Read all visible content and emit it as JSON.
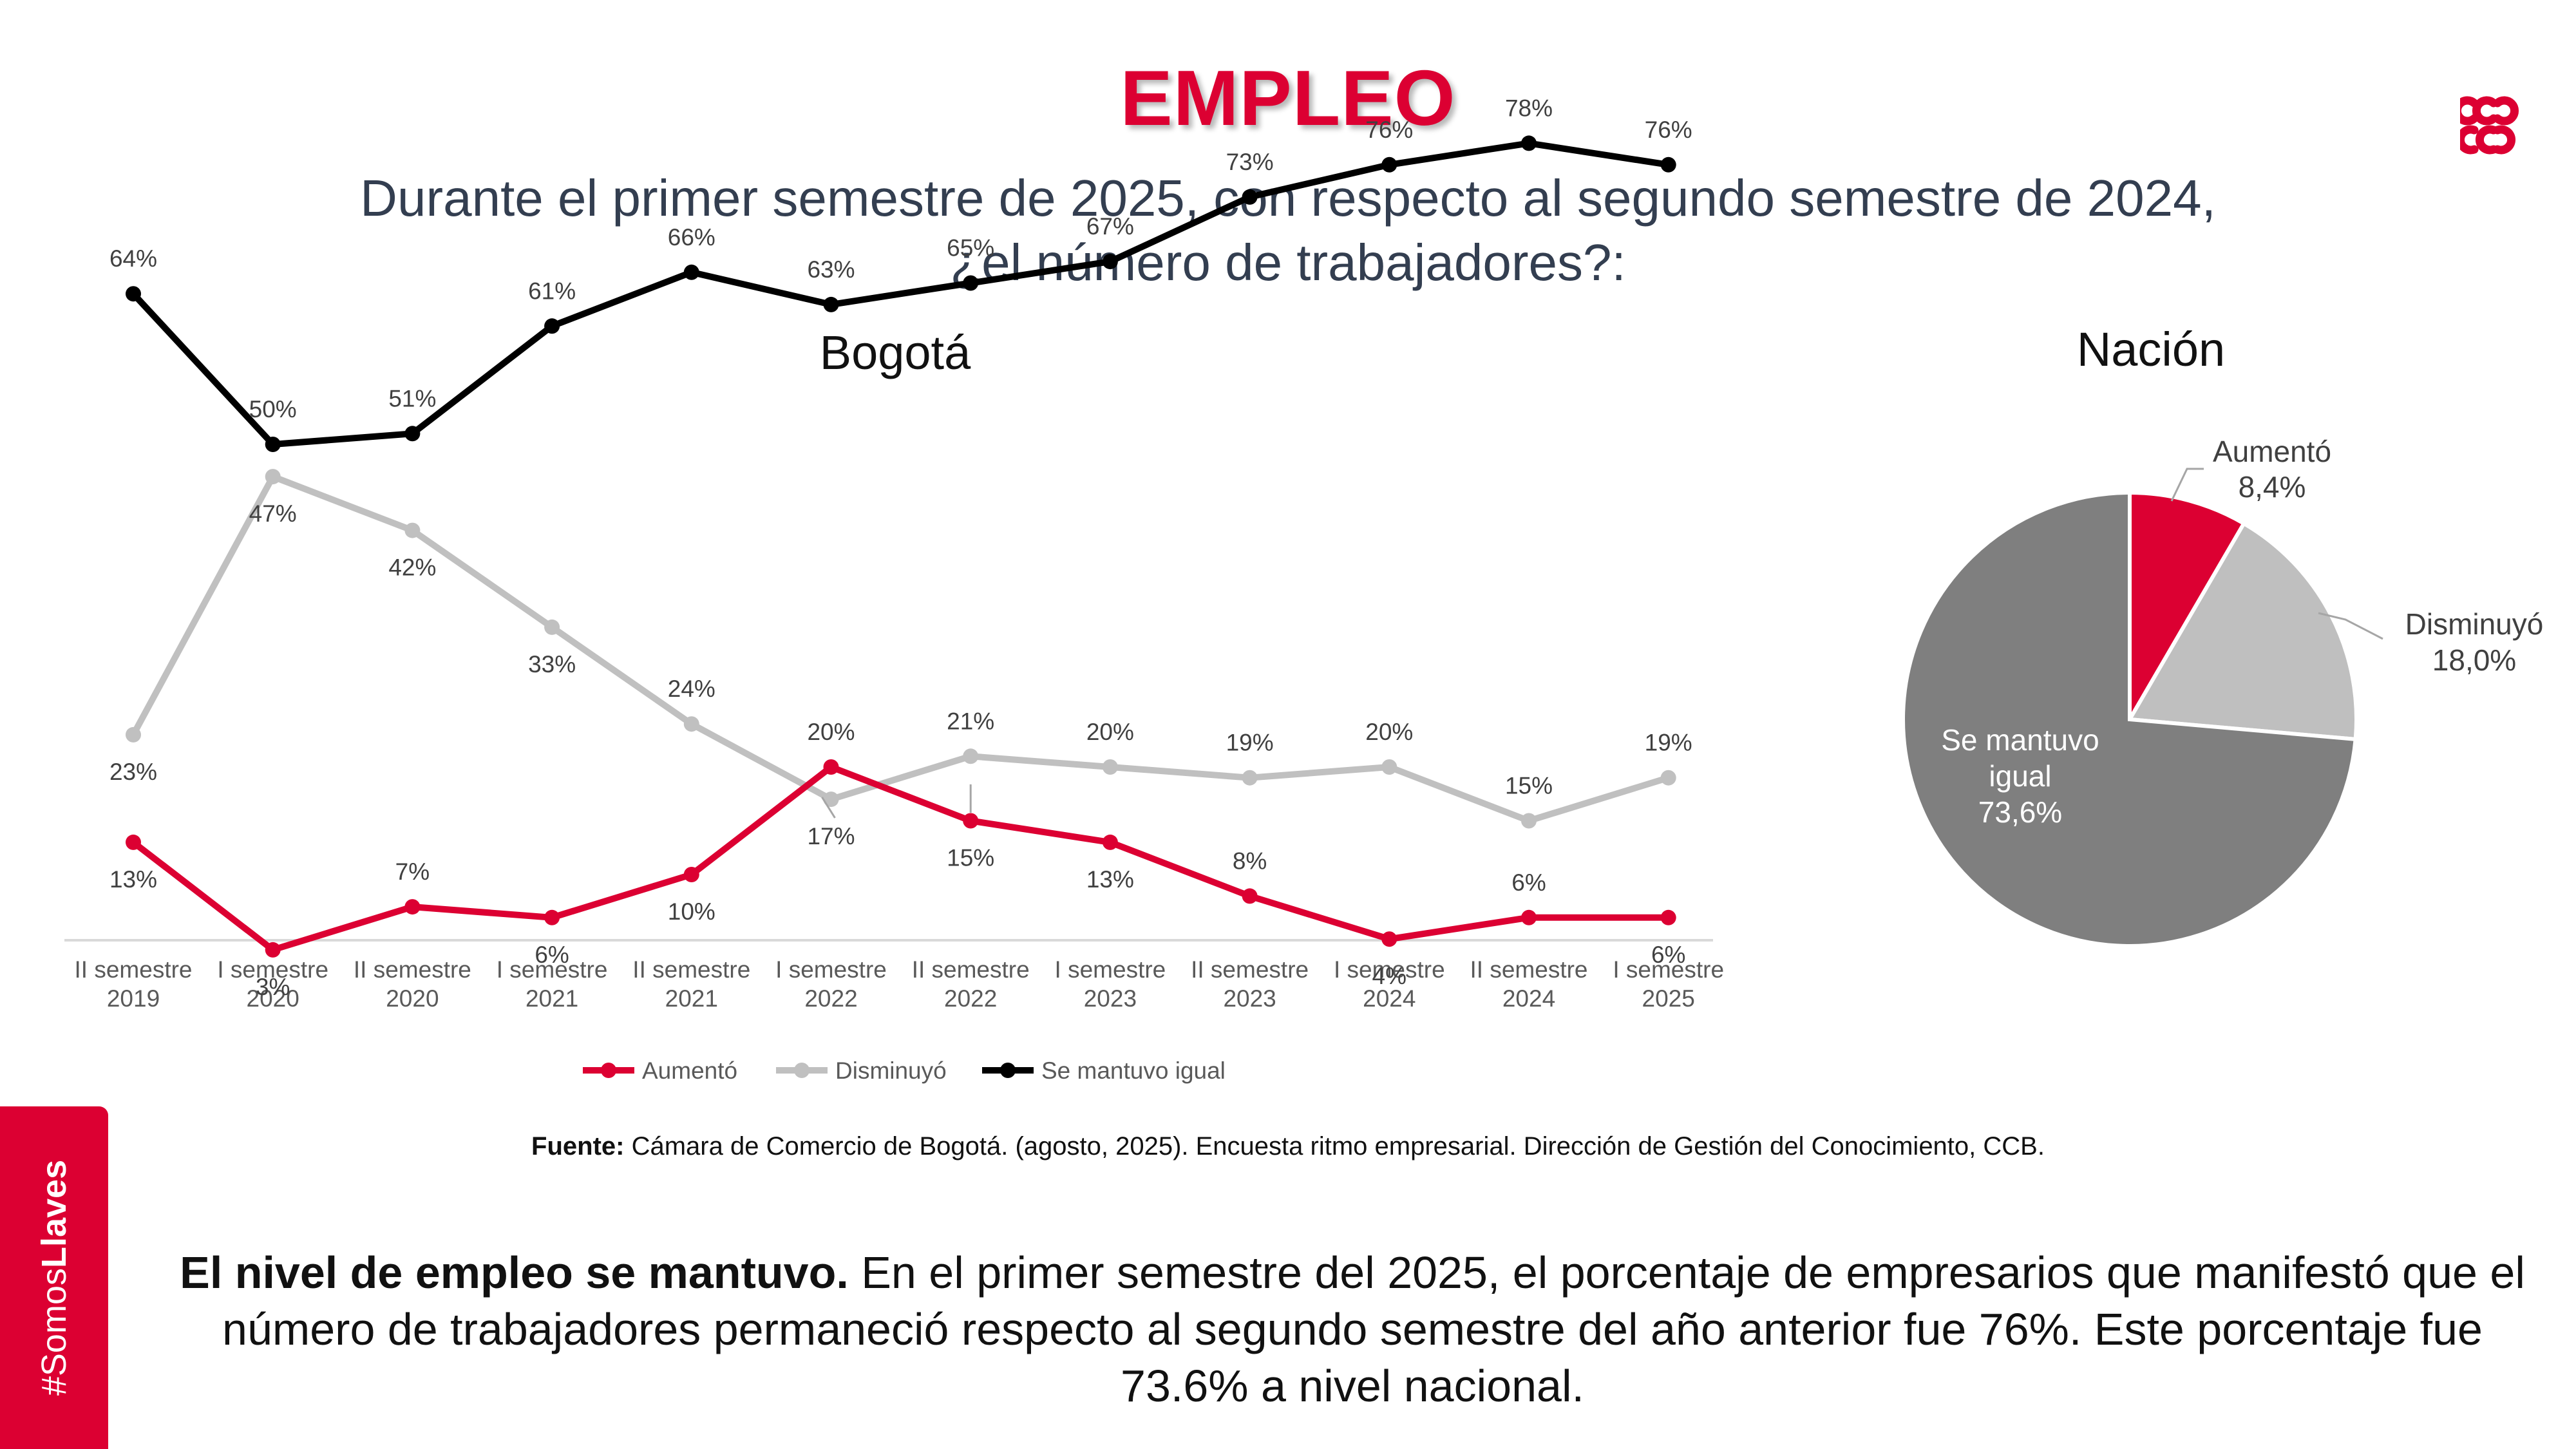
{
  "header": {
    "title": "EMPLEO",
    "subtitle_line1": "Durante el primer semestre de 2025, con respecto al segundo semestre de 2024,",
    "subtitle_line2": "¿el número de trabajadores?:"
  },
  "logo": {
    "icon": "ccb-logo-icon",
    "color": "#dc0032"
  },
  "colors": {
    "aumento": "#dc0032",
    "disminuyo": "#c0c0c0",
    "igual": "#000000",
    "pie_igual": "#7f7f7f"
  },
  "chart_data": [
    {
      "type": "line",
      "title": "Bogotá",
      "categories": [
        [
          "II semestre",
          "2019"
        ],
        [
          "I semestre",
          "2020"
        ],
        [
          "II semestre",
          "2020"
        ],
        [
          "I semestre",
          "2021"
        ],
        [
          "II semestre",
          "2021"
        ],
        [
          "I semestre",
          "2022"
        ],
        [
          "II semestre",
          "2022"
        ],
        [
          "I semestre",
          "2023"
        ],
        [
          "II semestre",
          "2023"
        ],
        [
          "I semestre",
          "2024"
        ],
        [
          "II semestre",
          "2024"
        ],
        [
          "I semestre",
          "2025"
        ]
      ],
      "series": [
        {
          "name": "Aumentó",
          "color": "#dc0032",
          "values": [
            13,
            3,
            7,
            6,
            10,
            20,
            15,
            13,
            8,
            4,
            6,
            6
          ],
          "labels": [
            "13%",
            "3%",
            "7%",
            "6%",
            "10%",
            "20%",
            "15%",
            "13%",
            "8%",
            "4%",
            "6%",
            "6%"
          ]
        },
        {
          "name": "Disminuyó",
          "color": "#c0c0c0",
          "values": [
            23,
            47,
            42,
            33,
            24,
            17,
            21,
            20,
            19,
            20,
            15,
            19
          ],
          "labels": [
            "23%",
            "47%",
            "42%",
            "33%",
            "24%",
            "17%",
            "21%",
            "20%",
            "19%",
            "20%",
            "15%",
            "19%"
          ]
        },
        {
          "name": "Se mantuvo igual",
          "color": "#000000",
          "values": [
            64,
            50,
            51,
            61,
            66,
            63,
            65,
            67,
            73,
            76,
            78,
            76
          ],
          "labels": [
            "64%",
            "50%",
            "51%",
            "61%",
            "66%",
            "63%",
            "65%",
            "67%",
            "73%",
            "76%",
            "78%",
            "76%"
          ]
        }
      ],
      "ylim": [
        0,
        100
      ],
      "grid": false,
      "legend": "bottom"
    },
    {
      "type": "pie",
      "title": "Nación",
      "slices": [
        {
          "label": "Aumentó",
          "value": 8.4,
          "value_label": "8,4%",
          "color": "#dc0032"
        },
        {
          "label": "Disminuyó",
          "value": 18.0,
          "value_label": "18,0%",
          "color": "#bfbfbf"
        },
        {
          "label_lines": [
            "Se mantuvo",
            "igual"
          ],
          "value": 73.6,
          "value_label": "73,6%",
          "color": "#7f7f7f"
        }
      ]
    }
  ],
  "sidebar": {
    "hashtag": "#Somos",
    "brand": "Llaves"
  },
  "source": {
    "label": "Fuente:",
    "text": " Cámara de Comercio de Bogotá. (agosto, 2025). Encuesta ritmo empresarial. Dirección de Gestión del Conocimiento, CCB."
  },
  "conclusion": {
    "bold": "El nivel de empleo se mantuvo.",
    "text": "  En el primer semestre del 2025, el porcentaje de empresarios que manifestó que el número de trabajadores permaneció respecto al segundo semestre del año anterior fue 76%. Este porcentaje fue 73.6% a nivel nacional."
  }
}
